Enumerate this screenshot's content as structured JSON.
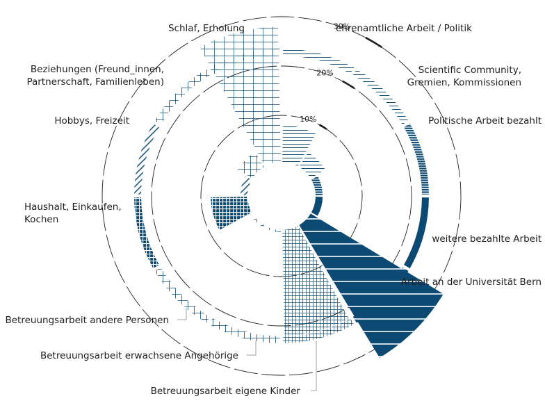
{
  "chart_data": {
    "type": "polar-area",
    "unit": "%",
    "rings": [
      {
        "value": 10,
        "label": "10%"
      },
      {
        "value": 20,
        "label": "20%"
      },
      {
        "value": 30,
        "label": "30%"
      }
    ],
    "categories": [
      {
        "label": "ehrenamtliche Arbeit / Politik",
        "value": 8,
        "pattern": "hlines-sparse"
      },
      {
        "label": "Scientific Community, Gremien, Kommissionen",
        "value": 4,
        "pattern": "hlines-sparse"
      },
      {
        "label": "Politische Arbeit bezahlt",
        "value": 2,
        "pattern": "hlines-dense"
      },
      {
        "label": "weitere bezahlte Arbeit",
        "value": 2,
        "pattern": "solid"
      },
      {
        "label": "Arbeit an der Universität Bern",
        "value": 32,
        "pattern": "solid-hlines"
      },
      {
        "label": "Betreuungsarbeit eigene Kinder",
        "value": 22,
        "pattern": "grid-fine"
      },
      {
        "label": "Betreuungsarbeit erwachsene Angehörige",
        "value": 1,
        "pattern": "grid-sparse"
      },
      {
        "label": "Betreuungsarbeit andere Personen",
        "value": 1,
        "pattern": "grid-sparse"
      },
      {
        "label": "Haushalt, Einkaufen, Kochen",
        "value": 8,
        "pattern": "grid-bold"
      },
      {
        "label": "Hobbys, Freizeit",
        "value": 2,
        "pattern": "diag"
      },
      {
        "label": "Beziehungen (Freund_innen, Partnerschaft, Familienleben)",
        "value": 4,
        "pattern": "grid-sparse"
      },
      {
        "label": "Schlaf, Erholung",
        "value": 28,
        "pattern": "grid-tall"
      }
    ],
    "labels": [
      {
        "lines": [
          "ehrenamtliche Arbeit / Politik"
        ]
      },
      {
        "lines": [
          "Scientific Community,",
          "Gremien, Kommissionen"
        ]
      },
      {
        "lines": [
          "Politische Arbeit bezahlt"
        ]
      },
      {
        "lines": [
          "weitere bezahlte Arbeit"
        ]
      },
      {
        "lines": [
          "Arbeit an der Universität Bern"
        ]
      },
      {
        "lines": [
          "Betreuungsarbeit eigene Kinder"
        ]
      },
      {
        "lines": [
          "Betreuungsarbeit erwachsene Angehörige"
        ]
      },
      {
        "lines": [
          "Betreuungsarbeit andere Personen"
        ]
      },
      {
        "lines": [
          "Haushalt, Einkaufen,",
          "Kochen"
        ]
      },
      {
        "lines": [
          "Hobbys, Freizeit"
        ]
      },
      {
        "lines": [
          "Beziehungen (Freund_innen,",
          "Partnerschaft, Familienleben)"
        ]
      },
      {
        "lines": [
          "Schlaf, Erholung"
        ]
      }
    ],
    "colors": {
      "primary": "#0d4a73",
      "text": "#1e1e1e",
      "ring": "#1e1e1e"
    }
  }
}
